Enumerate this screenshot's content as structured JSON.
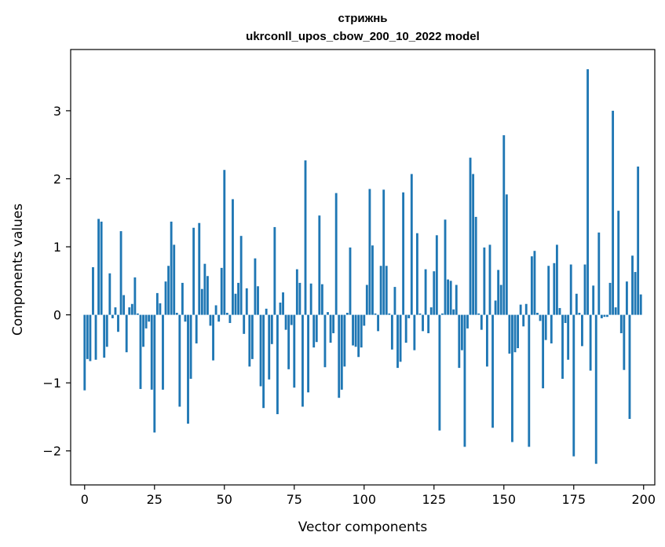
{
  "chart_data": {
    "type": "bar",
    "title": "стрижнь",
    "subtitle": "ukrconll_upos_cbow_200_10_2022 model",
    "xlabel": "Vector components",
    "ylabel": "Components values",
    "xlim": [
      -5,
      204
    ],
    "ylim": [
      -2.5,
      3.9
    ],
    "xticks": [
      0,
      25,
      50,
      75,
      100,
      125,
      150,
      175,
      200
    ],
    "yticks": [
      -2,
      -1,
      0,
      1,
      2,
      3
    ],
    "xtick_labels": [
      "0",
      "25",
      "50",
      "75",
      "100",
      "125",
      "150",
      "175",
      "200"
    ],
    "ytick_labels": [
      "−2",
      "−1",
      "0",
      "1",
      "2",
      "3"
    ],
    "bar_color": "#1f77b4",
    "grid": false,
    "values": [
      -1.11,
      -0.65,
      -0.68,
      0.7,
      -0.66,
      1.41,
      1.37,
      -0.63,
      -0.47,
      0.61,
      -0.05,
      0.11,
      -0.25,
      1.23,
      0.29,
      -0.55,
      0.11,
      0.16,
      0.55,
      0.02,
      -1.09,
      -0.47,
      -0.2,
      -0.1,
      -1.1,
      -1.73,
      0.32,
      0.17,
      -1.1,
      0.49,
      0.72,
      1.37,
      1.03,
      0.03,
      -1.35,
      0.47,
      -0.1,
      -1.6,
      -0.94,
      1.28,
      -0.42,
      1.35,
      0.38,
      0.75,
      0.57,
      -0.16,
      -0.67,
      0.14,
      -0.1,
      0.69,
      2.13,
      0.03,
      -0.12,
      1.7,
      0.31,
      0.47,
      1.16,
      -0.28,
      0.39,
      -0.76,
      -0.65,
      0.83,
      0.42,
      -1.05,
      -1.37,
      0.09,
      -0.95,
      -0.43,
      1.29,
      -1.46,
      0.18,
      0.33,
      -0.22,
      -0.8,
      -0.15,
      -1.07,
      0.67,
      0.47,
      -1.35,
      2.27,
      -1.14,
      0.46,
      -0.48,
      -0.4,
      1.46,
      0.45,
      -0.77,
      0.04,
      -0.41,
      -0.27,
      1.79,
      -1.22,
      -1.1,
      -0.76,
      0.03,
      0.99,
      -0.45,
      -0.47,
      -0.62,
      -0.48,
      -0.16,
      0.44,
      1.85,
      1.02,
      0.02,
      -0.24,
      0.72,
      1.84,
      0.72,
      0.02,
      -0.51,
      0.41,
      -0.78,
      -0.69,
      1.8,
      -0.41,
      -0.05,
      2.07,
      -0.52,
      1.2,
      0.02,
      -0.24,
      0.67,
      -0.27,
      0.11,
      0.64,
      1.17,
      -1.7,
      0.02,
      1.4,
      0.52,
      0.5,
      0.08,
      0.44,
      -0.78,
      -0.52,
      -1.94,
      -0.2,
      2.31,
      2.07,
      1.44,
      0.02,
      -0.22,
      0.99,
      -0.76,
      1.03,
      -1.66,
      0.21,
      0.66,
      0.44,
      2.64,
      1.77,
      -0.57,
      -1.87,
      -0.55,
      -0.49,
      0.15,
      -0.17,
      0.16,
      -1.94,
      0.86,
      0.94,
      0.03,
      -0.09,
      -1.08,
      -0.37,
      0.72,
      -0.42,
      0.76,
      1.03,
      0.1,
      -0.94,
      -0.12,
      -0.66,
      0.74,
      -2.08,
      0.31,
      0.03,
      -0.46,
      0.74,
      3.61,
      -0.82,
      0.43,
      -2.19,
      1.21,
      -0.05,
      -0.03,
      -0.03,
      0.47,
      3.0,
      0.11,
      1.53,
      -0.27,
      -0.81,
      0.49,
      -1.53,
      0.87,
      0.63,
      2.18,
      0.3
    ]
  }
}
